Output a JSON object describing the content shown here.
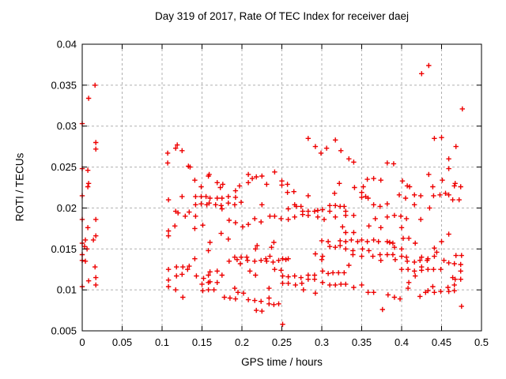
{
  "chart_data": {
    "type": "scatter",
    "title": "Day 319 of 2017, Rate Of TEC Index for receiver daej",
    "xlabel": "GPS time / hours",
    "ylabel": "ROTI / TECUs",
    "xlim": [
      0,
      0.5
    ],
    "ylim": [
      0.005,
      0.04
    ],
    "x_ticks": [
      "0",
      "0.05",
      "0.1",
      "0.15",
      "0.2",
      "0.25",
      "0.3",
      "0.35",
      "0.4",
      "0.45",
      "0.5"
    ],
    "y_ticks": [
      "0.005",
      "0.01",
      "0.015",
      "0.02",
      "0.025",
      "0.03",
      "0.035",
      "0.04"
    ],
    "grid": true,
    "legend": "none",
    "marker_symbol": "plus",
    "marker_color": "#ee0000",
    "grid_color": "#b0b0b0",
    "axis_color": "#000000",
    "background_color": "#ffffff",
    "points": [
      [
        0.016,
        0.035
      ],
      [
        0.008,
        0.0334
      ],
      [
        0.0,
        0.0303
      ],
      [
        0.017,
        0.028
      ],
      [
        0.017,
        0.0272
      ],
      [
        0.119,
        0.0277
      ],
      [
        0.117,
        0.0273
      ],
      [
        0.125,
        0.027
      ],
      [
        0.107,
        0.0267
      ],
      [
        0.107,
        0.0255
      ],
      [
        0.133,
        0.0251
      ],
      [
        0.135,
        0.025
      ],
      [
        0.0,
        0.0248
      ],
      [
        0.007,
        0.0246
      ],
      [
        0.158,
        0.0239
      ],
      [
        0.141,
        0.0234
      ],
      [
        0.008,
        0.023
      ],
      [
        0.283,
        0.0285
      ],
      [
        0.292,
        0.0275
      ],
      [
        0.317,
        0.0283
      ],
      [
        0.306,
        0.0273
      ],
      [
        0.299,
        0.0267
      ],
      [
        0.324,
        0.027
      ],
      [
        0.159,
        0.0241
      ],
      [
        0.208,
        0.0241
      ],
      [
        0.241,
        0.0244
      ],
      [
        0.218,
        0.0238
      ],
      [
        0.225,
        0.0239
      ],
      [
        0.213,
        0.0236
      ],
      [
        0.208,
        0.0231
      ],
      [
        0.169,
        0.0231
      ],
      [
        0.176,
        0.0229
      ],
      [
        0.231,
        0.0229
      ],
      [
        0.25,
        0.0233
      ],
      [
        0.25,
        0.0228
      ],
      [
        0.257,
        0.0229
      ],
      [
        0.322,
        0.023
      ],
      [
        0.434,
        0.0374
      ],
      [
        0.425,
        0.0364
      ],
      [
        0.476,
        0.0321
      ],
      [
        0.441,
        0.0285
      ],
      [
        0.45,
        0.0286
      ],
      [
        0.468,
        0.0275
      ],
      [
        0.334,
        0.026
      ],
      [
        0.34,
        0.0256
      ],
      [
        0.382,
        0.0255
      ],
      [
        0.39,
        0.0254
      ],
      [
        0.459,
        0.026
      ],
      [
        0.459,
        0.0248
      ],
      [
        0.434,
        0.0241
      ],
      [
        0.357,
        0.0235
      ],
      [
        0.365,
        0.0236
      ],
      [
        0.374,
        0.0234
      ],
      [
        0.401,
        0.0233
      ],
      [
        0.451,
        0.0234
      ],
      [
        0.467,
        0.023
      ],
      [
        0.007,
        0.0226
      ],
      [
        0.0,
        0.0215
      ],
      [
        0.149,
        0.0226
      ],
      [
        0.108,
        0.021
      ],
      [
        0.125,
        0.0214
      ],
      [
        0.142,
        0.0214
      ],
      [
        0.149,
        0.0214
      ],
      [
        0.155,
        0.0214
      ],
      [
        0.142,
        0.0204
      ],
      [
        0.149,
        0.0205
      ],
      [
        0.156,
        0.0204
      ],
      [
        0.0,
        0.0186
      ],
      [
        0.017,
        0.0186
      ],
      [
        0.117,
        0.0196
      ],
      [
        0.12,
        0.0194
      ],
      [
        0.129,
        0.019
      ],
      [
        0.134,
        0.0195
      ],
      [
        0.142,
        0.019
      ],
      [
        0.007,
        0.0176
      ],
      [
        0.116,
        0.0178
      ],
      [
        0.108,
        0.0172
      ],
      [
        0.108,
        0.0166
      ],
      [
        0.141,
        0.0175
      ],
      [
        0.151,
        0.0179
      ],
      [
        0.004,
        0.0161
      ],
      [
        0.014,
        0.0161
      ],
      [
        0.017,
        0.0166
      ],
      [
        0.0,
        0.0157
      ],
      [
        0.003,
        0.0153
      ],
      [
        0.006,
        0.015
      ],
      [
        0.158,
        0.0148
      ],
      [
        0.141,
        0.0138
      ],
      [
        0.0,
        0.0143
      ],
      [
        0.0,
        0.0136
      ],
      [
        0.004,
        0.0135
      ],
      [
        0.016,
        0.0128
      ],
      [
        0.008,
        0.0111
      ],
      [
        0.017,
        0.0115
      ],
      [
        0.017,
        0.0106
      ],
      [
        0.0,
        0.0104
      ],
      [
        0.108,
        0.0125
      ],
      [
        0.118,
        0.0128
      ],
      [
        0.126,
        0.0128
      ],
      [
        0.134,
        0.0129
      ],
      [
        0.132,
        0.0125
      ],
      [
        0.118,
        0.0117
      ],
      [
        0.125,
        0.0119
      ],
      [
        0.108,
        0.0112
      ],
      [
        0.143,
        0.0117
      ],
      [
        0.152,
        0.0114
      ],
      [
        0.158,
        0.0118
      ],
      [
        0.108,
        0.0104
      ],
      [
        0.117,
        0.01
      ],
      [
        0.15,
        0.0107
      ],
      [
        0.158,
        0.0109
      ],
      [
        0.151,
        0.0099
      ],
      [
        0.158,
        0.01
      ],
      [
        0.126,
        0.0091
      ],
      [
        0.173,
        0.0225
      ],
      [
        0.192,
        0.0221
      ],
      [
        0.197,
        0.0227
      ],
      [
        0.257,
        0.0219
      ],
      [
        0.265,
        0.022
      ],
      [
        0.283,
        0.0215
      ],
      [
        0.316,
        0.0218
      ],
      [
        0.16,
        0.0212
      ],
      [
        0.169,
        0.0212
      ],
      [
        0.175,
        0.0212
      ],
      [
        0.183,
        0.0214
      ],
      [
        0.192,
        0.0213
      ],
      [
        0.159,
        0.0206
      ],
      [
        0.167,
        0.0204
      ],
      [
        0.174,
        0.0203
      ],
      [
        0.183,
        0.0206
      ],
      [
        0.191,
        0.0204
      ],
      [
        0.199,
        0.0207
      ],
      [
        0.175,
        0.0199
      ],
      [
        0.225,
        0.0204
      ],
      [
        0.258,
        0.0199
      ],
      [
        0.266,
        0.0204
      ],
      [
        0.268,
        0.0202
      ],
      [
        0.274,
        0.0202
      ],
      [
        0.276,
        0.0196
      ],
      [
        0.276,
        0.0192
      ],
      [
        0.283,
        0.0196
      ],
      [
        0.283,
        0.0191
      ],
      [
        0.291,
        0.0196
      ],
      [
        0.295,
        0.0197
      ],
      [
        0.301,
        0.0198
      ],
      [
        0.31,
        0.0203
      ],
      [
        0.317,
        0.0203
      ],
      [
        0.323,
        0.0202
      ],
      [
        0.328,
        0.0202
      ],
      [
        0.31,
        0.0196
      ],
      [
        0.317,
        0.0189
      ],
      [
        0.303,
        0.0186
      ],
      [
        0.295,
        0.0189
      ],
      [
        0.258,
        0.0186
      ],
      [
        0.266,
        0.0189
      ],
      [
        0.249,
        0.0187
      ],
      [
        0.235,
        0.019
      ],
      [
        0.241,
        0.019
      ],
      [
        0.216,
        0.0187
      ],
      [
        0.224,
        0.0183
      ],
      [
        0.184,
        0.0185
      ],
      [
        0.192,
        0.0182
      ],
      [
        0.201,
        0.0177
      ],
      [
        0.208,
        0.018
      ],
      [
        0.326,
        0.0177
      ],
      [
        0.174,
        0.0169
      ],
      [
        0.183,
        0.0162
      ],
      [
        0.16,
        0.0158
      ],
      [
        0.219,
        0.0154
      ],
      [
        0.217,
        0.015
      ],
      [
        0.237,
        0.0152
      ],
      [
        0.24,
        0.0158
      ],
      [
        0.3,
        0.016
      ],
      [
        0.308,
        0.0159
      ],
      [
        0.31,
        0.0153
      ],
      [
        0.317,
        0.0152
      ],
      [
        0.323,
        0.016
      ],
      [
        0.323,
        0.0154
      ],
      [
        0.292,
        0.0144
      ],
      [
        0.301,
        0.0141
      ],
      [
        0.191,
        0.014
      ],
      [
        0.199,
        0.014
      ],
      [
        0.206,
        0.014
      ],
      [
        0.23,
        0.0138
      ],
      [
        0.235,
        0.0141
      ],
      [
        0.251,
        0.0138
      ],
      [
        0.258,
        0.0138
      ],
      [
        0.184,
        0.0135
      ],
      [
        0.194,
        0.0137
      ],
      [
        0.207,
        0.0136
      ],
      [
        0.216,
        0.0135
      ],
      [
        0.224,
        0.0136
      ],
      [
        0.231,
        0.0135
      ],
      [
        0.239,
        0.0134
      ],
      [
        0.246,
        0.0136
      ],
      [
        0.255,
        0.0137
      ],
      [
        0.3,
        0.0137
      ],
      [
        0.198,
        0.0132
      ],
      [
        0.241,
        0.0125
      ],
      [
        0.249,
        0.0124
      ],
      [
        0.21,
        0.0123
      ],
      [
        0.217,
        0.0118
      ],
      [
        0.16,
        0.0122
      ],
      [
        0.169,
        0.0123
      ],
      [
        0.175,
        0.0118
      ],
      [
        0.16,
        0.011
      ],
      [
        0.169,
        0.0109
      ],
      [
        0.165,
        0.01
      ],
      [
        0.191,
        0.0102
      ],
      [
        0.195,
        0.0097
      ],
      [
        0.202,
        0.0096
      ],
      [
        0.178,
        0.0091
      ],
      [
        0.185,
        0.009
      ],
      [
        0.192,
        0.0089
      ],
      [
        0.208,
        0.0088
      ],
      [
        0.216,
        0.0087
      ],
      [
        0.224,
        0.0086
      ],
      [
        0.234,
        0.009
      ],
      [
        0.234,
        0.0083
      ],
      [
        0.24,
        0.0082
      ],
      [
        0.246,
        0.0083
      ],
      [
        0.218,
        0.0075
      ],
      [
        0.225,
        0.0074
      ],
      [
        0.234,
        0.0102
      ],
      [
        0.251,
        0.0117
      ],
      [
        0.251,
        0.0108
      ],
      [
        0.258,
        0.0116
      ],
      [
        0.258,
        0.0108
      ],
      [
        0.266,
        0.0117
      ],
      [
        0.267,
        0.0106
      ],
      [
        0.274,
        0.0115
      ],
      [
        0.275,
        0.0108
      ],
      [
        0.277,
        0.01
      ],
      [
        0.283,
        0.0118
      ],
      [
        0.283,
        0.0113
      ],
      [
        0.291,
        0.0118
      ],
      [
        0.291,
        0.0113
      ],
      [
        0.292,
        0.0096
      ],
      [
        0.301,
        0.0123
      ],
      [
        0.301,
        0.0109
      ],
      [
        0.308,
        0.012
      ],
      [
        0.314,
        0.0121
      ],
      [
        0.321,
        0.0121
      ],
      [
        0.328,
        0.0121
      ],
      [
        0.31,
        0.0106
      ],
      [
        0.317,
        0.0106
      ],
      [
        0.324,
        0.0107
      ],
      [
        0.251,
        0.0058
      ],
      [
        0.341,
        0.0225
      ],
      [
        0.352,
        0.0226
      ],
      [
        0.407,
        0.0227
      ],
      [
        0.41,
        0.0226
      ],
      [
        0.439,
        0.0226
      ],
      [
        0.466,
        0.0227
      ],
      [
        0.474,
        0.0226
      ],
      [
        0.35,
        0.0219
      ],
      [
        0.355,
        0.0214
      ],
      [
        0.35,
        0.0213
      ],
      [
        0.358,
        0.0212
      ],
      [
        0.397,
        0.0216
      ],
      [
        0.405,
        0.0212
      ],
      [
        0.416,
        0.0216
      ],
      [
        0.424,
        0.0215
      ],
      [
        0.44,
        0.0215
      ],
      [
        0.448,
        0.0216
      ],
      [
        0.455,
        0.0218
      ],
      [
        0.459,
        0.0216
      ],
      [
        0.464,
        0.021
      ],
      [
        0.472,
        0.021
      ],
      [
        0.365,
        0.0204
      ],
      [
        0.373,
        0.0202
      ],
      [
        0.382,
        0.0205
      ],
      [
        0.416,
        0.0204
      ],
      [
        0.435,
        0.02
      ],
      [
        0.33,
        0.0196
      ],
      [
        0.33,
        0.0191
      ],
      [
        0.34,
        0.0191
      ],
      [
        0.367,
        0.0187
      ],
      [
        0.382,
        0.0189
      ],
      [
        0.391,
        0.0191
      ],
      [
        0.399,
        0.019
      ],
      [
        0.406,
        0.0187
      ],
      [
        0.424,
        0.0186
      ],
      [
        0.359,
        0.0178
      ],
      [
        0.374,
        0.0176
      ],
      [
        0.4,
        0.0176
      ],
      [
        0.33,
        0.017
      ],
      [
        0.34,
        0.017
      ],
      [
        0.459,
        0.0168
      ],
      [
        0.33,
        0.0159
      ],
      [
        0.337,
        0.0161
      ],
      [
        0.345,
        0.0159
      ],
      [
        0.35,
        0.0161
      ],
      [
        0.357,
        0.0159
      ],
      [
        0.365,
        0.0161
      ],
      [
        0.371,
        0.0159
      ],
      [
        0.382,
        0.0159
      ],
      [
        0.385,
        0.0158
      ],
      [
        0.389,
        0.0157
      ],
      [
        0.402,
        0.0163
      ],
      [
        0.409,
        0.0163
      ],
      [
        0.417,
        0.0157
      ],
      [
        0.45,
        0.0159
      ],
      [
        0.33,
        0.015
      ],
      [
        0.339,
        0.0148
      ],
      [
        0.351,
        0.015
      ],
      [
        0.359,
        0.0148
      ],
      [
        0.391,
        0.0152
      ],
      [
        0.4,
        0.015
      ],
      [
        0.441,
        0.0151
      ],
      [
        0.444,
        0.0146
      ],
      [
        0.339,
        0.0143
      ],
      [
        0.35,
        0.0141
      ],
      [
        0.364,
        0.0141
      ],
      [
        0.373,
        0.0143
      ],
      [
        0.382,
        0.0143
      ],
      [
        0.389,
        0.0143
      ],
      [
        0.4,
        0.0141
      ],
      [
        0.406,
        0.014
      ],
      [
        0.425,
        0.014
      ],
      [
        0.433,
        0.0138
      ],
      [
        0.441,
        0.0141
      ],
      [
        0.468,
        0.0142
      ],
      [
        0.475,
        0.0142
      ],
      [
        0.334,
        0.013
      ],
      [
        0.374,
        0.0136
      ],
      [
        0.392,
        0.0137
      ],
      [
        0.407,
        0.0135
      ],
      [
        0.416,
        0.0134
      ],
      [
        0.423,
        0.0136
      ],
      [
        0.432,
        0.0136
      ],
      [
        0.453,
        0.0136
      ],
      [
        0.4,
        0.0125
      ],
      [
        0.408,
        0.0125
      ],
      [
        0.416,
        0.0123
      ],
      [
        0.425,
        0.0124
      ],
      [
        0.425,
        0.0128
      ],
      [
        0.433,
        0.0125
      ],
      [
        0.44,
        0.0125
      ],
      [
        0.449,
        0.0125
      ],
      [
        0.459,
        0.0133
      ],
      [
        0.466,
        0.0132
      ],
      [
        0.474,
        0.0131
      ],
      [
        0.474,
        0.0123
      ],
      [
        0.464,
        0.0115
      ],
      [
        0.467,
        0.0113
      ],
      [
        0.474,
        0.0113
      ],
      [
        0.33,
        0.0107
      ],
      [
        0.34,
        0.0103
      ],
      [
        0.35,
        0.0106
      ],
      [
        0.409,
        0.0109
      ],
      [
        0.417,
        0.0117
      ],
      [
        0.408,
        0.0102
      ],
      [
        0.433,
        0.0099
      ],
      [
        0.439,
        0.0104
      ],
      [
        0.449,
        0.0098
      ],
      [
        0.458,
        0.0103
      ],
      [
        0.459,
        0.0098
      ],
      [
        0.466,
        0.0106
      ],
      [
        0.466,
        0.0099
      ],
      [
        0.358,
        0.0097
      ],
      [
        0.365,
        0.0097
      ],
      [
        0.383,
        0.0094
      ],
      [
        0.391,
        0.0091
      ],
      [
        0.398,
        0.0089
      ],
      [
        0.423,
        0.0092
      ],
      [
        0.43,
        0.0097
      ],
      [
        0.441,
        0.0097
      ],
      [
        0.376,
        0.0076
      ],
      [
        0.475,
        0.008
      ]
    ]
  }
}
